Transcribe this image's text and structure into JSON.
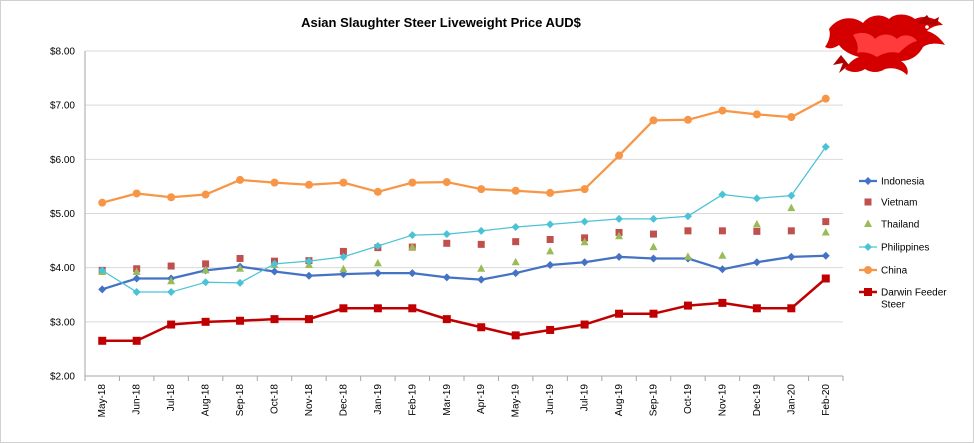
{
  "chart_data": {
    "type": "line",
    "title": "Asian Slaughter Steer Liveweight Price AUD$",
    "xlabel": "",
    "ylabel": "",
    "ylim": [
      2,
      8
    ],
    "yticks": [
      "$2.00",
      "$3.00",
      "$4.00",
      "$5.00",
      "$6.00",
      "$7.00",
      "$8.00"
    ],
    "grid": true,
    "legend_position": "right",
    "categories": [
      "May-18",
      "Jun-18",
      "Jul-18",
      "Aug-18",
      "Sep-18",
      "Oct-18",
      "Nov-18",
      "Dec-18",
      "Jan-19",
      "Feb-19",
      "Mar-19",
      "Apr-19",
      "May-19",
      "Jun-19",
      "Jul-19",
      "Aug-19",
      "Sep-19",
      "Oct-19",
      "Nov-19",
      "Dec-19",
      "Jan-20",
      "Feb-20"
    ],
    "series": [
      {
        "name": "Indonesia",
        "color": "#4472C4",
        "style": "line-diamond",
        "values": [
          3.6,
          3.8,
          3.8,
          3.95,
          4.02,
          3.93,
          3.85,
          3.88,
          3.9,
          3.9,
          3.82,
          3.78,
          3.9,
          4.05,
          4.1,
          4.2,
          4.17,
          4.17,
          3.97,
          4.1,
          4.2,
          4.22
        ]
      },
      {
        "name": "Vietnam",
        "color": "#C0504D",
        "style": "marker-square",
        "values": [
          3.95,
          3.98,
          4.03,
          4.07,
          4.17,
          4.12,
          4.13,
          4.3,
          4.37,
          4.38,
          4.45,
          4.43,
          4.48,
          4.52,
          4.55,
          4.65,
          4.62,
          4.68,
          4.68,
          4.67,
          4.68,
          4.85
        ]
      },
      {
        "name": "Thailand",
        "color": "#9BBB59",
        "style": "marker-triangle",
        "values": [
          3.92,
          3.92,
          3.75,
          3.95,
          3.98,
          4.05,
          4.05,
          3.97,
          4.08,
          4.38,
          null,
          3.98,
          4.1,
          4.3,
          4.47,
          4.58,
          4.38,
          4.2,
          4.22,
          4.8,
          5.1,
          4.65
        ]
      },
      {
        "name": "Philippines",
        "color": "#4BC3D6",
        "style": "line-diamond",
        "values": [
          3.95,
          3.55,
          3.55,
          3.73,
          3.72,
          4.07,
          4.12,
          4.2,
          4.4,
          4.6,
          4.62,
          4.68,
          4.75,
          4.8,
          4.85,
          4.9,
          4.9,
          4.95,
          5.35,
          5.28,
          5.33,
          6.23
        ]
      },
      {
        "name": "China",
        "color": "#F79646",
        "style": "line-circle",
        "values": [
          5.2,
          5.37,
          5.3,
          5.35,
          5.62,
          5.57,
          5.53,
          5.57,
          5.4,
          5.57,
          5.58,
          5.45,
          5.42,
          5.38,
          5.45,
          6.07,
          6.72,
          6.73,
          6.9,
          6.83,
          6.78,
          7.12
        ]
      },
      {
        "name": "Darwin Feeder Steer",
        "color": "#C00000",
        "style": "line-square",
        "values": [
          2.65,
          2.65,
          2.95,
          3.0,
          3.02,
          3.05,
          3.05,
          3.25,
          3.25,
          3.25,
          3.05,
          2.9,
          2.75,
          2.85,
          2.95,
          3.15,
          3.15,
          3.3,
          3.35,
          3.25,
          3.25,
          3.8
        ]
      }
    ]
  },
  "decoration": {
    "icon": "red-dragon-icon"
  }
}
